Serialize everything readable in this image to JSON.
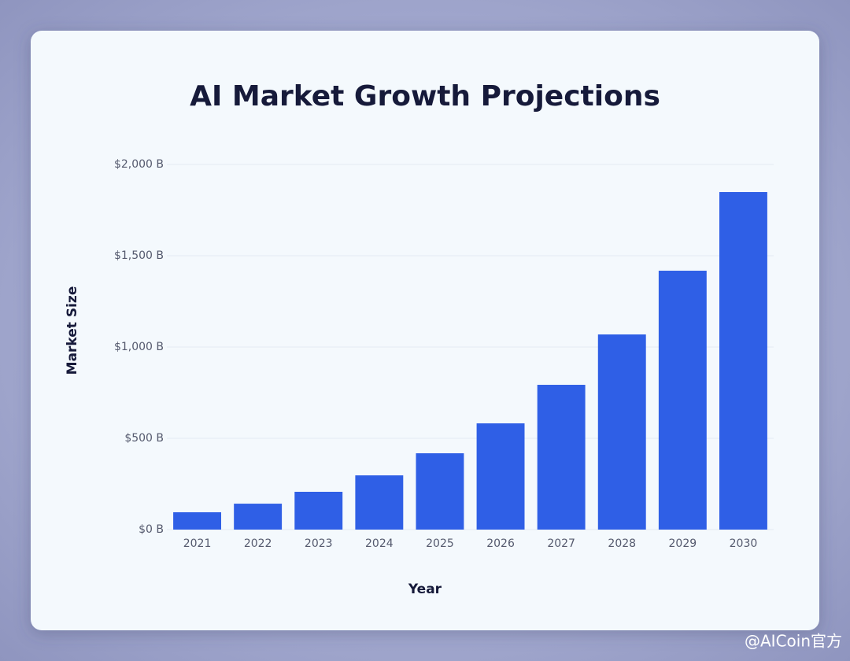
{
  "chart_data": {
    "type": "bar",
    "title": "AI Market Growth Projections",
    "x_label": "Year",
    "y_label": "Market Size",
    "categories": [
      "2021",
      "2022",
      "2023",
      "2024",
      "2025",
      "2026",
      "2027",
      "2028",
      "2029",
      "2030"
    ],
    "values": [
      95,
      142,
      207,
      297,
      418,
      582,
      793,
      1069,
      1418,
      1849
    ],
    "color": "#2f5fe6",
    "ylim": [
      0,
      2000
    ],
    "yticks": [
      {
        "value": 0,
        "label": "$0 B"
      },
      {
        "value": 500,
        "label": "$500 B"
      },
      {
        "value": 1000,
        "label": "$1,000 B"
      },
      {
        "value": 1500,
        "label": "$1,500 B"
      },
      {
        "value": 2000,
        "label": "$2,000 B"
      }
    ],
    "grid": true
  },
  "watermark": "@AICoin官方"
}
